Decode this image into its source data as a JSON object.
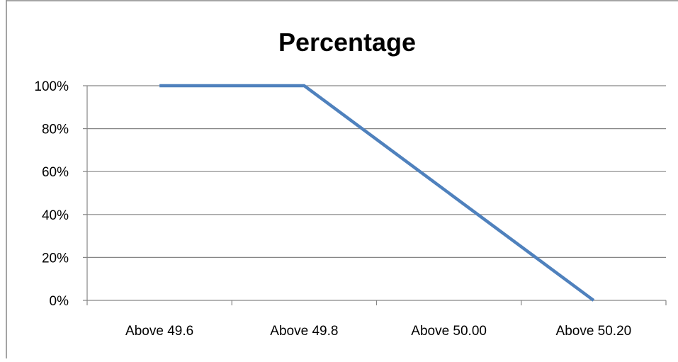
{
  "chart_data": {
    "type": "line",
    "title": "Percentage",
    "xlabel": "",
    "ylabel": "",
    "categories": [
      "Above 49.6",
      "Above 49.8",
      "Above 50.00",
      "Above 50.20"
    ],
    "series": [
      {
        "values": [
          100,
          100,
          50,
          0
        ]
      }
    ],
    "ylim": [
      0,
      100
    ],
    "yticks": [
      "0%",
      "20%",
      "40%",
      "60%",
      "80%",
      "100%"
    ],
    "grid": true,
    "legend": "none",
    "colors": {
      "line": "#4f81bd",
      "grid": "#868686",
      "axis": "#868686"
    }
  }
}
